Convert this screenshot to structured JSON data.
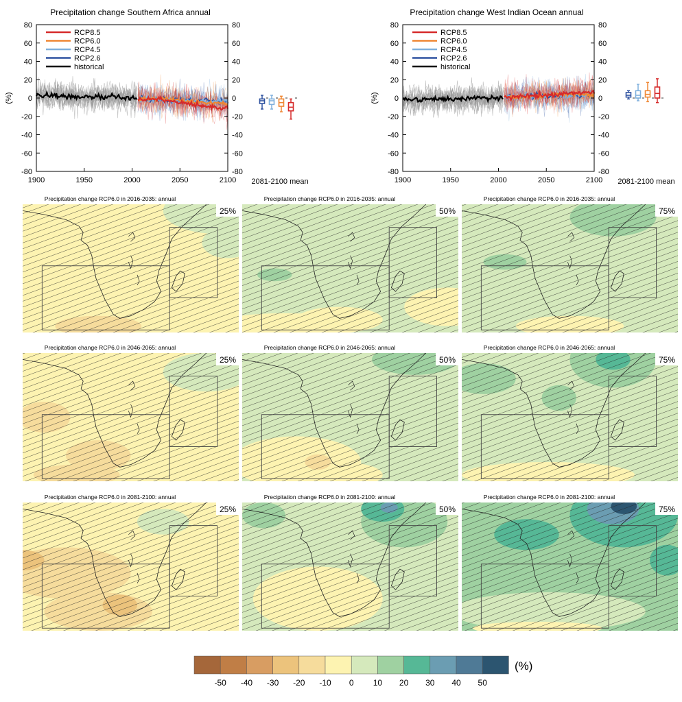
{
  "chart_data": [
    {
      "type": "line",
      "title": "Precipitation change Southern Africa annual",
      "ylabel": "(%)",
      "xlim": [
        1900,
        2100
      ],
      "ylim": [
        -80,
        80
      ],
      "xticks": [
        1900,
        1950,
        2000,
        2050,
        2100
      ],
      "yticks": [
        -80,
        -60,
        -40,
        -20,
        0,
        20,
        40,
        60,
        80
      ],
      "legend_position": "top-left",
      "legend": [
        "RCP8.5",
        "RCP6.0",
        "RCP4.5",
        "RCP2.6",
        "historical"
      ],
      "boxplot_label": "2081-2100 mean",
      "series": [
        {
          "name": "historical",
          "x": [
            1900,
            1925,
            1950,
            1975,
            2000,
            2005
          ],
          "y": [
            3,
            2,
            1,
            1,
            0,
            0
          ]
        },
        {
          "name": "RCP2.6",
          "x": [
            2006,
            2030,
            2050,
            2075,
            2100
          ],
          "y": [
            -1,
            -2,
            -2,
            -3,
            -3
          ]
        },
        {
          "name": "RCP4.5",
          "x": [
            2006,
            2030,
            2050,
            2075,
            2100
          ],
          "y": [
            -1,
            -2,
            -3,
            -4,
            -4
          ]
        },
        {
          "name": "RCP6.0",
          "x": [
            2006,
            2030,
            2050,
            2075,
            2100
          ],
          "y": [
            -1,
            -1,
            -3,
            -5,
            -6
          ]
        },
        {
          "name": "RCP8.5",
          "x": [
            2006,
            2030,
            2050,
            2075,
            2100
          ],
          "y": [
            -1,
            -2,
            -5,
            -9,
            -11
          ]
        }
      ],
      "boxes": [
        {
          "name": "RCP2.6",
          "min": -12,
          "q1": -6,
          "median": -3,
          "q3": -1,
          "max": 3
        },
        {
          "name": "RCP4.5",
          "min": -12,
          "q1": -7,
          "median": -3,
          "q3": -1,
          "max": 3
        },
        {
          "name": "RCP6.0",
          "min": -15,
          "q1": -9,
          "median": -5,
          "q3": -1,
          "max": 2
        },
        {
          "name": "RCP8.5",
          "min": -23,
          "q1": -14,
          "median": -10,
          "q3": -5,
          "max": -1
        }
      ]
    },
    {
      "type": "line",
      "title": "Precipitation change West Indian Ocean annual",
      "ylabel": "(%)",
      "xlim": [
        1900,
        2100
      ],
      "ylim": [
        -80,
        80
      ],
      "xticks": [
        1900,
        1950,
        2000,
        2050,
        2100
      ],
      "yticks": [
        -80,
        -60,
        -40,
        -20,
        0,
        20,
        40,
        60,
        80
      ],
      "legend_position": "top-left",
      "legend": [
        "RCP8.5",
        "RCP6.0",
        "RCP4.5",
        "RCP2.6",
        "historical"
      ],
      "boxplot_label": "2081-2100 mean",
      "series": [
        {
          "name": "historical",
          "x": [
            1900,
            1925,
            1950,
            1975,
            2000,
            2005
          ],
          "y": [
            -2,
            -2,
            -1,
            0,
            0,
            0
          ]
        },
        {
          "name": "RCP2.6",
          "x": [
            2006,
            2030,
            2050,
            2075,
            2100
          ],
          "y": [
            1,
            2,
            2,
            3,
            3
          ]
        },
        {
          "name": "RCP4.5",
          "x": [
            2006,
            2030,
            2050,
            2075,
            2100
          ],
          "y": [
            1,
            2,
            3,
            3,
            3
          ]
        },
        {
          "name": "RCP6.0",
          "x": [
            2006,
            2030,
            2050,
            2075,
            2100
          ],
          "y": [
            1,
            2,
            3,
            4,
            4
          ]
        },
        {
          "name": "RCP8.5",
          "x": [
            2006,
            2030,
            2050,
            2075,
            2100
          ],
          "y": [
            1,
            2,
            3,
            5,
            6
          ]
        }
      ],
      "boxes": [
        {
          "name": "RCP2.6",
          "min": -1,
          "q1": 1,
          "median": 3,
          "q3": 6,
          "max": 8
        },
        {
          "name": "RCP4.5",
          "min": -3,
          "q1": 0,
          "median": 3,
          "q3": 8,
          "max": 15
        },
        {
          "name": "RCP6.0",
          "min": -4,
          "q1": 1,
          "median": 4,
          "q3": 8,
          "max": 17
        },
        {
          "name": "RCP8.5",
          "min": -5,
          "q1": 0,
          "median": 5,
          "q3": 12,
          "max": 21
        }
      ]
    },
    {
      "type": "heatmap",
      "panels": [
        {
          "title": "Precipitation change RCP6.0 in 2016-2035: annual",
          "percentile": "25%",
          "level": 0
        },
        {
          "title": "Precipitation change RCP6.0 in 2016-2035: annual",
          "percentile": "50%",
          "level": 1
        },
        {
          "title": "Precipitation change RCP6.0 in 2016-2035: annual",
          "percentile": "75%",
          "level": 2
        },
        {
          "title": "Precipitation change RCP6.0 in 2046-2065: annual",
          "percentile": "25%",
          "level": 3
        },
        {
          "title": "Precipitation change RCP6.0 in 2046-2065: annual",
          "percentile": "50%",
          "level": 4
        },
        {
          "title": "Precipitation change RCP6.0 in 2046-2065: annual",
          "percentile": "75%",
          "level": 5
        },
        {
          "title": "Precipitation change RCP6.0 in 2081-2100: annual",
          "percentile": "25%",
          "level": 6
        },
        {
          "title": "Precipitation change RCP6.0 in 2081-2100: annual",
          "percentile": "50%",
          "level": 7
        },
        {
          "title": "Precipitation change RCP6.0 in 2081-2100: annual",
          "percentile": "75%",
          "level": 8
        }
      ],
      "colorbar": {
        "unit": "(%)",
        "ticks": [
          "-50",
          "-40",
          "-30",
          "-20",
          "-10",
          "0",
          "10",
          "20",
          "30",
          "40",
          "50"
        ],
        "colors": [
          "#a5673a",
          "#c07e46",
          "#d89d62",
          "#ecc37c",
          "#f6dc9c",
          "#fdf3b1",
          "#d5e9bc",
          "#9fd1a1",
          "#56b896",
          "#6b9db2",
          "#4f7a96",
          "#2c5570"
        ]
      }
    }
  ]
}
